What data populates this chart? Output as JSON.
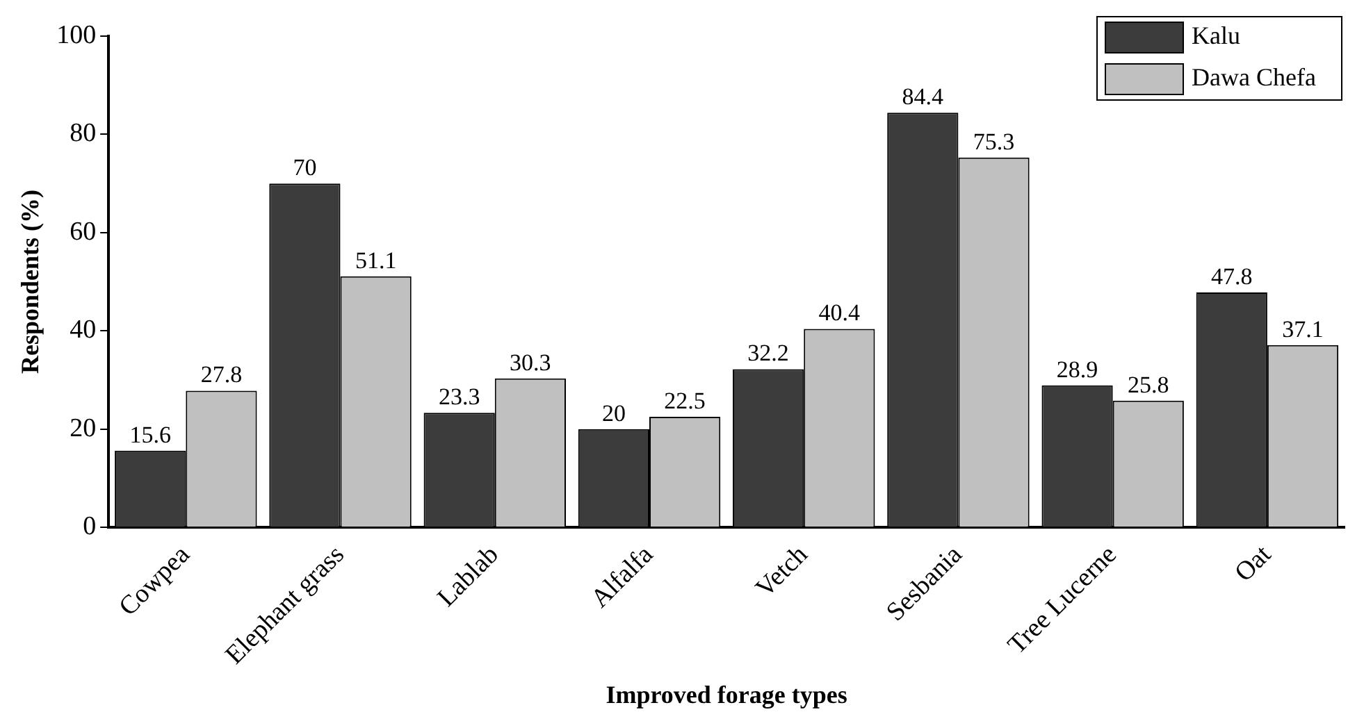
{
  "chart_data": {
    "type": "bar",
    "xlabel": "Improved forage types",
    "ylabel": "Respondents (%)",
    "categories": [
      "Cowpea",
      "Elephant grass",
      "Lablab",
      "Alfalfa",
      "Vetch",
      "Sesbania",
      "Tree Lucerne",
      "Oat"
    ],
    "series": [
      {
        "name": "Kalu",
        "color": "#3c3c3c",
        "values": [
          15.6,
          70,
          23.3,
          20,
          32.2,
          84.4,
          28.9,
          47.8
        ]
      },
      {
        "name": "Dawa Chefa",
        "color": "#c0c0c0",
        "values": [
          27.8,
          51.1,
          30.3,
          22.5,
          40.4,
          75.3,
          25.8,
          37.1
        ]
      }
    ],
    "ylim": [
      0,
      100
    ],
    "yticks": [
      0,
      20,
      40,
      60,
      80,
      100
    ],
    "grid": false,
    "legend": "top right",
    "data_labels": true
  }
}
